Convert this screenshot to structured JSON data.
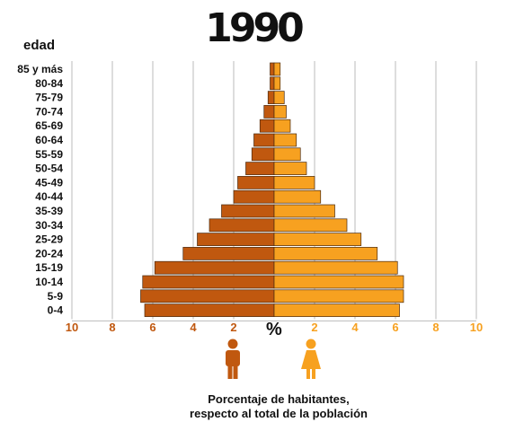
{
  "chart_data": {
    "type": "bar",
    "title": "1990",
    "ylabel": "edad",
    "xlabel": "%",
    "categories": [
      "0-4",
      "5-9",
      "10-14",
      "15-19",
      "20-24",
      "25-29",
      "30-34",
      "35-39",
      "40-44",
      "45-49",
      "50-54",
      "55-59",
      "60-64",
      "65-69",
      "70-74",
      "75-79",
      "80-84",
      "85 y más"
    ],
    "series": [
      {
        "values": [
          6.4,
          6.6,
          6.5,
          5.9,
          4.5,
          3.8,
          3.2,
          2.6,
          2.0,
          1.8,
          1.4,
          1.1,
          1.0,
          0.7,
          0.5,
          0.3,
          0.2,
          0.2
        ]
      },
      {
        "values": [
          6.2,
          6.4,
          6.4,
          6.1,
          5.1,
          4.3,
          3.6,
          3.0,
          2.3,
          2.0,
          1.6,
          1.3,
          1.1,
          0.8,
          0.6,
          0.5,
          0.3,
          0.3
        ]
      }
    ],
    "xticks_left": [
      "10",
      "8",
      "6",
      "4",
      "2"
    ],
    "xticks_right": [
      "2",
      "4",
      "6",
      "8",
      "10"
    ],
    "xlim": [
      -10,
      10
    ],
    "grid": true,
    "colors": {
      "male": "#c0580f",
      "female": "#f7a120",
      "bar_edge": "#4a2a10",
      "grid": "#bbbbbb"
    },
    "caption_line1": "Porcentaje de habitantes,",
    "caption_line2": "respecto al total de la población",
    "icons": {
      "male": "man-icon",
      "female": "woman-icon"
    }
  }
}
